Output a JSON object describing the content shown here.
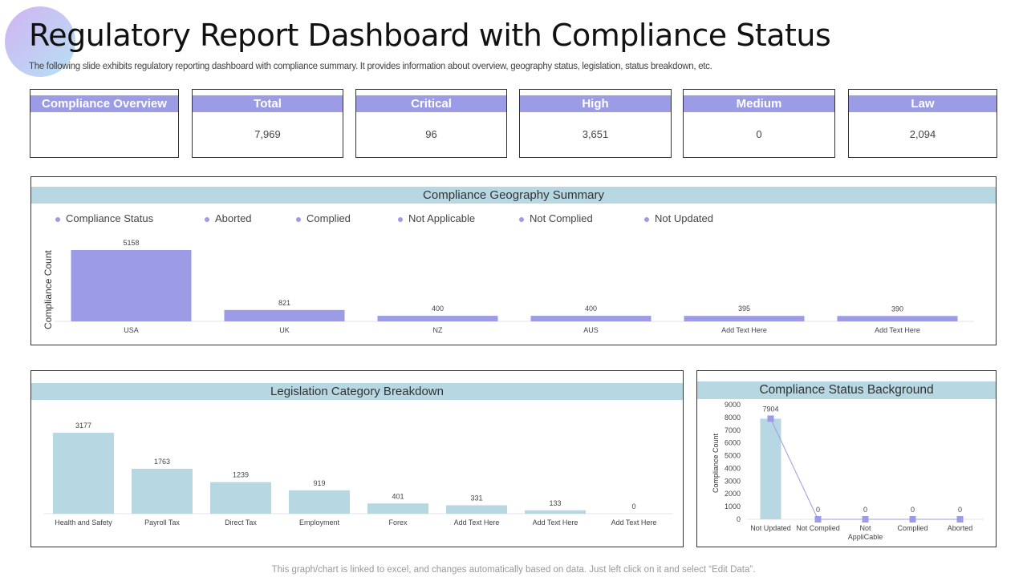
{
  "header": {
    "title": "Regulatory Report Dashboard with Compliance Status",
    "subtitle": "The following slide exhibits regulatory reporting dashboard with compliance summary. It provides information about overview, geography status, legislation, status breakdown, etc."
  },
  "kpis": [
    {
      "label": "Compliance Overview",
      "value": ""
    },
    {
      "label": "Total",
      "value": "7,969"
    },
    {
      "label": "Critical",
      "value": "96"
    },
    {
      "label": "High",
      "value": "3,651"
    },
    {
      "label": "Medium",
      "value": "0"
    },
    {
      "label": "Law",
      "value": "2,094"
    }
  ],
  "colors": {
    "accent": "#9b9be6",
    "light": "#b7d7e3"
  },
  "footer": "This graph/chart is linked to excel, and changes automatically based on data. Just left click on it and select “Edit Data”.",
  "chart_data": [
    {
      "type": "bar",
      "title": "Compliance Geography Summary",
      "ylabel": "Compliance Count",
      "legend": [
        "Compliance Status",
        "Aborted",
        "Complied",
        "Not Applicable",
        "Not Complied",
        "Not Updated"
      ],
      "categories": [
        "USA",
        "UK",
        "NZ",
        "AUS",
        "Add Text Here",
        "Add Text Here"
      ],
      "values": [
        5158,
        821,
        400,
        400,
        395,
        390
      ],
      "color": "#9b9be6"
    },
    {
      "type": "bar",
      "title": "Legislation Category Breakdown",
      "categories": [
        "Health and Safety",
        "Payroll Tax",
        "Direct Tax",
        "Employment",
        "Forex",
        "Add Text Here",
        "Add Text Here",
        "Add Text Here"
      ],
      "values": [
        3177,
        1763,
        1239,
        919,
        401,
        331,
        133,
        0
      ],
      "color": "#b7d7e3"
    },
    {
      "type": "bar+line",
      "title": "Compliance Status Background",
      "ylabel": "Compliance Count",
      "categories": [
        "Not Updated",
        "Not Complied",
        "Not ApplicCable",
        "Complied",
        "Aborted"
      ],
      "category_lines": [
        [
          "Not Updated"
        ],
        [
          "Not Complied"
        ],
        [
          "Not",
          "AppliCable"
        ],
        [
          "Complied"
        ],
        [
          "Aborted"
        ]
      ],
      "values": [
        7904,
        0,
        0,
        0,
        0
      ],
      "ylim": [
        0,
        9000
      ],
      "yticks": [
        0,
        1000,
        2000,
        3000,
        4000,
        5000,
        6000,
        7000,
        8000,
        9000
      ]
    }
  ]
}
